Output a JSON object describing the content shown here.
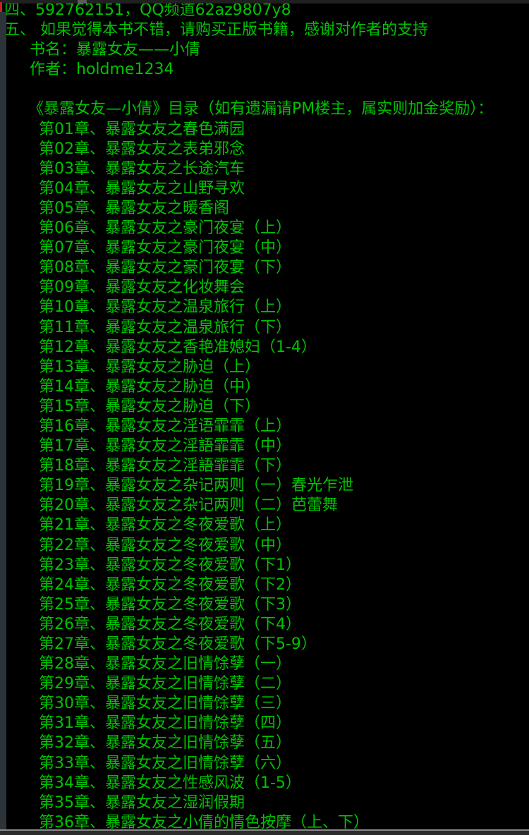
{
  "window": {
    "kind": "text-viewer-terminal",
    "colors": {
      "bg": "#000000",
      "text_green": "#00c300",
      "top_bar": "#202020",
      "top_bar_tick": "#5a5a5a",
      "left_strip": "#2d3439",
      "red_marker": "#cf1d1d",
      "bottom_bar": "#2c2c2c",
      "bottom_bar_edge": "#8a8a8a"
    }
  },
  "header": {
    "note_line_4": "四、592762151，QQ频道62az9807y8",
    "note_line_5": "五、 如果觉得本书不错，请购买正版书籍，感谢对作者的支持",
    "book_name": "书名：暴露女友——小倩",
    "author": "作者：holdme1234"
  },
  "toc": {
    "title": "《暴露女友—小倩》目录（如有遗漏请PM楼主，属实则加金奖励）：",
    "chapters": [
      "第01章、暴露女友之春色满园",
      "第02章、暴露女友之表弟邪念",
      "第03章、暴露女友之长途汽车",
      "第04章、暴露女友之山野寻欢",
      "第05章、暴露女友之暖香阁",
      "第06章、暴露女友之豪门夜宴（上）",
      "第07章、暴露女友之豪门夜宴（中）",
      "第08章、暴露女友之豪门夜宴（下）",
      "第09章、暴露女友之化妆舞会",
      "第10章、暴露女友之温泉旅行（上）",
      "第11章、暴露女友之温泉旅行（下）",
      "第12章、暴露女友之香艳准媳妇（1-4）",
      "第13章、暴露女友之胁迫（上）",
      "第14章、暴露女友之胁迫（中）",
      "第15章、暴露女友之胁迫（下）",
      "第16章、暴露女友之淫语霏霏（上）",
      "第17章、暴露女友之淫語霏霏（中）",
      "第18章、暴露女友之淫語霏霏（下）",
      "第19章、暴露女友之杂记两则（一）春光乍泄",
      "第20章、暴露女友之杂记两则（二）芭蕾舞",
      "第21章、暴露女友之冬夜爱歌（上）",
      "第22章、暴露女友之冬夜爱歌（中）",
      "第23章、暴露女友之冬夜爱歌（下1）",
      "第24章、暴露女友之冬夜爱歌（下2）",
      "第25章、暴露女友之冬夜爱歌（下3）",
      "第26章、暴露女友之冬夜爱歌（下4）",
      "第27章、暴露女友之冬夜爱歌（下5-9）",
      "第28章、暴露女友之旧情馀孽（一）",
      "第29章、暴露女友之旧情馀孽（二）",
      "第30章、暴露女友之旧情馀孽（三）",
      "第31章、暴露女友之旧情馀孽（四）",
      "第32章、暴露女友之旧情馀孽（五）",
      "第33章、暴露女友之旧情馀孽（六）",
      "第34章、暴露女友之性感风波（1-5）",
      "第35章、暴露女友之湿润假期",
      "第36章、暴露女友之小倩的情色按摩（上、下）"
    ]
  }
}
